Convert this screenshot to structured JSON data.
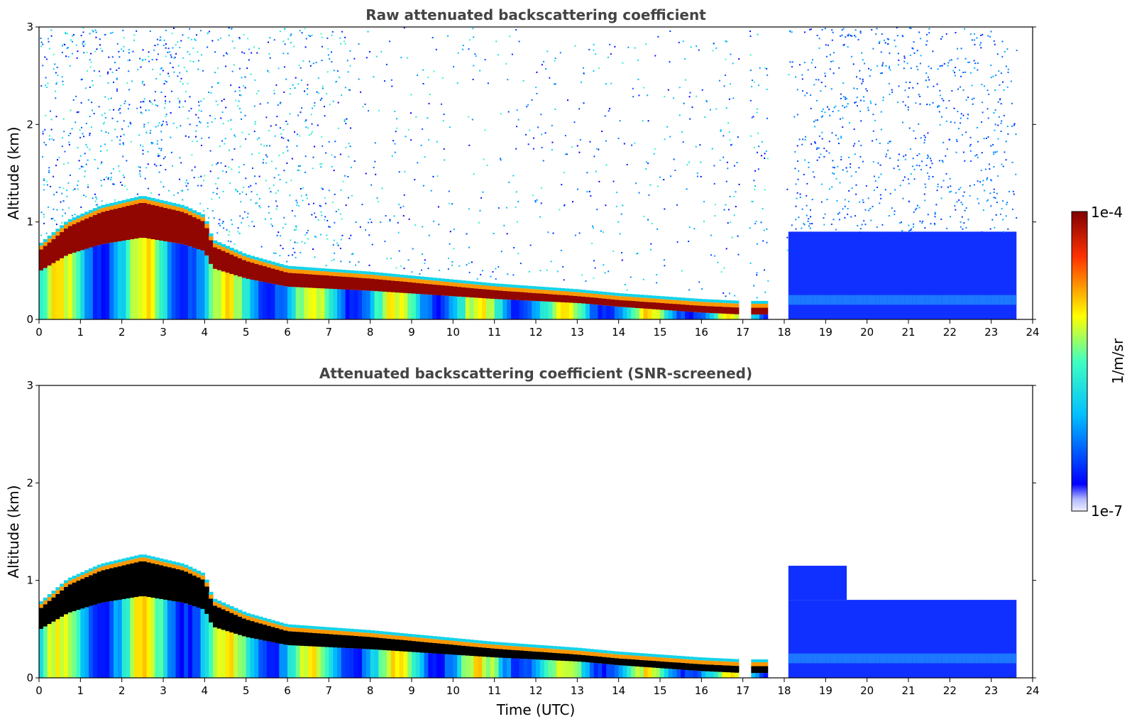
{
  "chart_data": [
    {
      "type": "heatmap",
      "title": "Raw attenuated backscattering coefficient",
      "xlabel": "",
      "ylabel": "Altitude (km)",
      "xlim": [
        0,
        24
      ],
      "ylim": [
        0,
        3
      ],
      "xticks": [
        "0",
        "1",
        "2",
        "3",
        "4",
        "5",
        "6",
        "7",
        "8",
        "9",
        "10",
        "11",
        "12",
        "13",
        "14",
        "15",
        "16",
        "17",
        "18",
        "19",
        "20",
        "21",
        "22",
        "23",
        "24"
      ],
      "yticks": [
        "0",
        "1",
        "2",
        "3"
      ],
      "screened": false,
      "layer_top_km": [
        [
          0,
          0.7
        ],
        [
          0.7,
          0.95
        ],
        [
          1.5,
          1.1
        ],
        [
          2.5,
          1.2
        ],
        [
          3.5,
          1.1
        ],
        [
          4,
          1.0
        ],
        [
          4.2,
          0.75
        ],
        [
          5,
          0.6
        ],
        [
          6,
          0.48
        ],
        [
          7,
          0.45
        ],
        [
          8,
          0.42
        ],
        [
          9,
          0.38
        ],
        [
          10,
          0.34
        ],
        [
          11,
          0.3
        ],
        [
          12,
          0.27
        ],
        [
          13,
          0.24
        ],
        [
          14,
          0.2
        ],
        [
          15,
          0.17
        ],
        [
          16,
          0.14
        ],
        [
          17,
          0.12
        ],
        [
          18,
          0.12
        ]
      ],
      "data_gaps_utc": [
        [
          16.9,
          17.15
        ],
        [
          17.6,
          18.05
        ]
      ]
    },
    {
      "type": "heatmap",
      "title": "Attenuated backscattering coefficient (SNR-screened)",
      "xlabel": "Time (UTC)",
      "ylabel": "Altitude (km)",
      "xlim": [
        0,
        24
      ],
      "ylim": [
        0,
        3
      ],
      "xticks": [
        "0",
        "1",
        "2",
        "3",
        "4",
        "5",
        "6",
        "7",
        "8",
        "9",
        "10",
        "11",
        "12",
        "13",
        "14",
        "15",
        "16",
        "17",
        "18",
        "19",
        "20",
        "21",
        "22",
        "23",
        "24"
      ],
      "yticks": [
        "0",
        "1",
        "2",
        "3"
      ],
      "screened": true,
      "layer_top_km": [
        [
          0,
          0.7
        ],
        [
          0.7,
          0.95
        ],
        [
          1.5,
          1.1
        ],
        [
          2.5,
          1.2
        ],
        [
          3.5,
          1.1
        ],
        [
          4,
          1.0
        ],
        [
          4.2,
          0.75
        ],
        [
          5,
          0.6
        ],
        [
          6,
          0.48
        ],
        [
          7,
          0.45
        ],
        [
          8,
          0.42
        ],
        [
          9,
          0.38
        ],
        [
          10,
          0.34
        ],
        [
          11,
          0.3
        ],
        [
          12,
          0.27
        ],
        [
          13,
          0.24
        ],
        [
          14,
          0.2
        ],
        [
          15,
          0.17
        ],
        [
          16,
          0.14
        ],
        [
          17,
          0.12
        ],
        [
          18,
          0.12
        ]
      ],
      "data_gaps_utc": [
        [
          16.9,
          17.15
        ],
        [
          17.6,
          18.05
        ]
      ]
    }
  ],
  "colorbar": {
    "label": "1/m/sr",
    "max_label": "1e-4",
    "min_label": "1e-7",
    "range": [
      1e-07,
      0.0001
    ],
    "scale": "log",
    "colormap": "jet"
  },
  "colors": {
    "title": "#444444",
    "background": "#ffffff",
    "saturated_screened": "#000000"
  }
}
